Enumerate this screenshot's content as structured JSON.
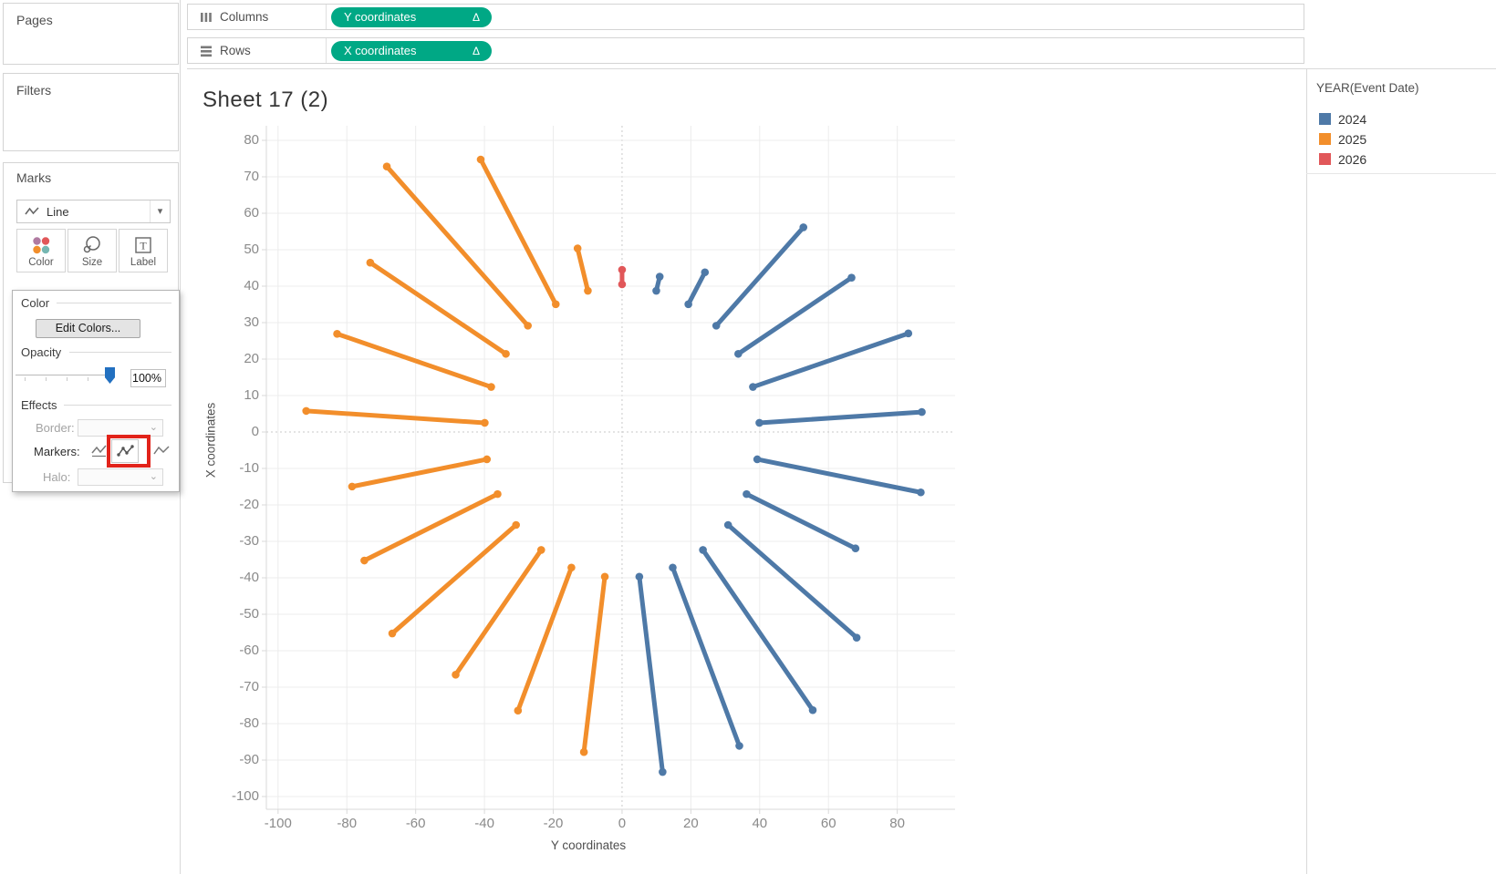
{
  "left_panel": {
    "pages_label": "Pages",
    "filters_label": "Filters",
    "marks_label": "Marks",
    "mark_type": "Line",
    "buttons": [
      "Color",
      "Size",
      "Label"
    ],
    "color_icon_dots": [
      "#b07aa1",
      "#e15759",
      "#f28e2b",
      "#76b7b2"
    ],
    "color_card": {
      "color_heading": "Color",
      "edit_colors_label": "Edit Colors...",
      "opacity_heading": "Opacity",
      "opacity_value": "100%",
      "effects_heading": "Effects",
      "border_label": "Border:",
      "markers_label": "Markers:",
      "halo_label": "Halo:"
    }
  },
  "shelves": {
    "columns_label": "Columns",
    "rows_label": "Rows",
    "columns_pill": "Y coordinates",
    "rows_pill": "X coordinates",
    "pill_color": "#00a885",
    "delta_symbol": "Δ"
  },
  "sheet": {
    "title": "Sheet 17 (2)"
  },
  "legend": {
    "title": "YEAR(Event Date)",
    "items": [
      {
        "label": "2024",
        "color": "#4e79a7"
      },
      {
        "label": "2025",
        "color": "#f28e2b"
      },
      {
        "label": "2026",
        "color": "#e15759"
      }
    ]
  },
  "chart_data": {
    "type": "line",
    "subtype": "radial-spoke-segments",
    "title": "Sheet 17 (2)",
    "xlabel": "Y coordinates",
    "ylabel": "X coordinates",
    "x_ticks": [
      -100,
      -80,
      -60,
      -40,
      -20,
      0,
      20,
      40,
      60,
      80
    ],
    "y_ticks": [
      80,
      70,
      60,
      50,
      40,
      30,
      20,
      10,
      0,
      -10,
      -20,
      -30,
      -40,
      -50,
      -60,
      -70,
      -80,
      -90,
      -100
    ],
    "x_range": [
      -103.4,
      96.8
    ],
    "y_range": [
      -103.5,
      84
    ],
    "grid": true,
    "zero_lines_dashed": true,
    "inner_radius": 40,
    "angle_step_deg": 14.4,
    "legend_position": "top-right",
    "series": [
      {
        "name": "2024",
        "color": "#4e79a7",
        "spokes": [
          [
            1,
            44
          ],
          [
            2,
            50
          ],
          [
            3,
            77
          ],
          [
            4,
            79
          ],
          [
            5,
            87.5
          ],
          [
            6,
            87.3
          ],
          [
            7,
            88.4
          ],
          [
            8,
            75
          ],
          [
            9,
            88.5
          ],
          [
            10,
            94.3
          ],
          [
            11,
            92.6
          ],
          [
            12,
            94
          ]
        ]
      },
      {
        "name": "2025",
        "color": "#f28e2b",
        "spokes": [
          [
            13,
            88.5
          ],
          [
            14,
            82.2
          ],
          [
            15,
            82.3
          ],
          [
            16,
            86.7
          ],
          [
            17,
            82.8
          ],
          [
            18,
            79.9
          ],
          [
            19,
            92
          ],
          [
            20,
            87.1
          ],
          [
            21,
            86.7
          ],
          [
            22,
            99.9
          ],
          [
            23,
            85.3
          ],
          [
            24,
            52
          ]
        ]
      },
      {
        "name": "2026",
        "color": "#e15759",
        "inner_radius": 40.5,
        "spokes": [
          [
            25,
            44.5
          ]
        ]
      }
    ]
  }
}
